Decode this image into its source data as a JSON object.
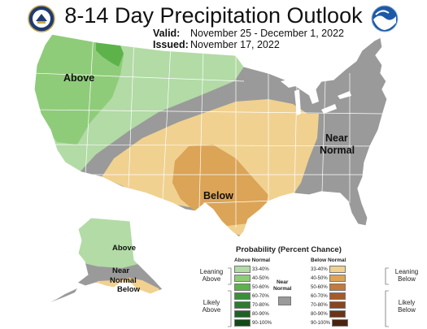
{
  "header": {
    "title": "8-14 Day Precipitation Outlook",
    "valid_label": "Valid:",
    "valid_value": "November 25 - December 1, 2022",
    "issued_label": "Issued:",
    "issued_value": "November 17, 2022"
  },
  "logos": {
    "left": "doc-seal-icon",
    "right": "noaa-logo-icon"
  },
  "map_labels": {
    "above_west": "Above",
    "below_central": "Below",
    "near_normal_east": "Near Normal",
    "alaska_above": "Above",
    "alaska_near_normal": "Near Normal",
    "alaska_below": "Below"
  },
  "colors": {
    "above_33_40": "#b2dba6",
    "above_40_50": "#8fcc7a",
    "above_50_60": "#5db34a",
    "above_60_70": "#3a8f3a",
    "above_70_80": "#2e7a30",
    "above_80_90": "#1f6124",
    "above_90_100": "#144a18",
    "below_33_40": "#f0d190",
    "below_40_50": "#dba457",
    "below_50_60": "#c47a3a",
    "below_60_70": "#a65a28",
    "below_70_80": "#8a4520",
    "below_80_90": "#6b3418",
    "below_90_100": "#4a2410",
    "near_normal": "#9a9a9a"
  },
  "legend": {
    "title": "Probability (Percent Chance)",
    "above_header": "Above Normal",
    "below_header": "Below Normal",
    "near_normal_header": "Near Normal",
    "ranges": [
      "33-40%",
      "40-50%",
      "50-60%",
      "60-70%",
      "70-80%",
      "80-90%",
      "90-100%"
    ],
    "leaning_above": "Leaning Above",
    "likely_above": "Likely Above",
    "leaning_below": "Leaning Below",
    "likely_below": "Likely Below"
  }
}
